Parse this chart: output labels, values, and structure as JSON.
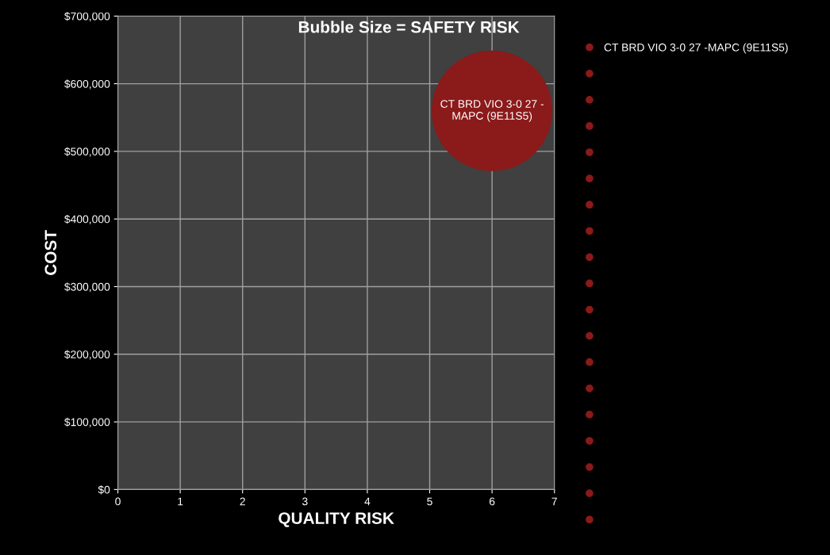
{
  "chart_data": {
    "type": "bubble",
    "title": "Bubble Size = SAFETY RISK",
    "xlabel": "QUALITY RISK",
    "ylabel": "COST",
    "x": [
      6
    ],
    "series": [
      {
        "name": "CT BRD VIO 3-0 27 -MAPC (9E11S5)",
        "color": "#8b1a1a",
        "values": [
          560000
        ],
        "sizes": [
          1
        ]
      },
      {
        "color": "#8b1a1a",
        "values": [
          null
        ],
        "sizes": [
          null
        ]
      },
      {
        "color": "#8b1a1a",
        "values": [
          null
        ],
        "sizes": [
          null
        ]
      },
      {
        "color": "#8b1a1a",
        "values": [
          null
        ],
        "sizes": [
          null
        ]
      },
      {
        "color": "#8b1a1a",
        "values": [
          null
        ],
        "sizes": [
          null
        ]
      },
      {
        "color": "#8b1a1a",
        "values": [
          null
        ],
        "sizes": [
          null
        ]
      },
      {
        "color": "#8b1a1a",
        "values": [
          null
        ],
        "sizes": [
          null
        ]
      },
      {
        "color": "#8b1a1a",
        "values": [
          null
        ],
        "sizes": [
          null
        ]
      },
      {
        "color": "#8b1a1a",
        "values": [
          null
        ],
        "sizes": [
          null
        ]
      },
      {
        "color": "#8b1a1a",
        "values": [
          null
        ],
        "sizes": [
          null
        ]
      },
      {
        "color": "#8b1a1a",
        "values": [
          null
        ],
        "sizes": [
          null
        ]
      },
      {
        "color": "#8b1a1a",
        "values": [
          null
        ],
        "sizes": [
          null
        ]
      },
      {
        "color": "#8b1a1a",
        "values": [
          null
        ],
        "sizes": [
          null
        ]
      },
      {
        "color": "#8b1a1a",
        "values": [
          null
        ],
        "sizes": [
          null
        ]
      },
      {
        "color": "#8b1a1a",
        "values": [
          null
        ],
        "sizes": [
          null
        ]
      },
      {
        "color": "#8b1a1a",
        "values": [
          null
        ],
        "sizes": [
          null
        ]
      },
      {
        "color": "#8b1a1a",
        "values": [
          null
        ],
        "sizes": [
          null
        ]
      },
      {
        "color": "#8b1a1a",
        "values": [
          null
        ],
        "sizes": [
          null
        ]
      },
      {
        "color": "#8b1a1a",
        "values": [
          null
        ],
        "sizes": [
          null
        ]
      }
    ],
    "annotations": [
      {
        "text": "CT BRD VIO 3-0 27 -\nMAPC (9E11S5)",
        "x": 6,
        "y": 560000
      }
    ],
    "xlim": [
      0,
      7
    ],
    "xticks": [
      0,
      1,
      2,
      3,
      4,
      5,
      6,
      7
    ],
    "ylim": [
      0,
      700000
    ],
    "yticks": [
      {
        "value": 0,
        "label": "$0"
      },
      {
        "value": 100000,
        "label": "$100,000"
      },
      {
        "value": 200000,
        "label": "$200,000"
      },
      {
        "value": 300000,
        "label": "$300,000"
      },
      {
        "value": 400000,
        "label": "$400,000"
      },
      {
        "value": 500000,
        "label": "$500,000"
      },
      {
        "value": 600000,
        "label": "$600,000"
      },
      {
        "value": 700000,
        "label": "$700,000"
      }
    ],
    "grid": true,
    "legend": "right"
  }
}
